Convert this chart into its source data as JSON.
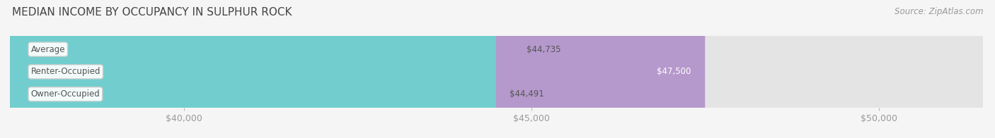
{
  "title": "MEDIAN INCOME BY OCCUPANCY IN SULPHUR ROCK",
  "source": "Source: ZipAtlas.com",
  "categories": [
    "Owner-Occupied",
    "Renter-Occupied",
    "Average"
  ],
  "values": [
    44491,
    47500,
    44735
  ],
  "bar_colors": [
    "#72cece",
    "#b599cc",
    "#f5c99a"
  ],
  "bar_bg_color": "#e4e4e4",
  "value_labels": [
    "$44,491",
    "$47,500",
    "$44,735"
  ],
  "value_label_colors": [
    "#555555",
    "#ffffff",
    "#555555"
  ],
  "xlim_min": 37500,
  "xlim_max": 51500,
  "x_ticks": [
    40000,
    45000,
    50000
  ],
  "x_tick_labels": [
    "$40,000",
    "$45,000",
    "$50,000"
  ],
  "bar_height": 0.58,
  "title_fontsize": 11,
  "label_fontsize": 8.5,
  "tick_fontsize": 9,
  "source_fontsize": 8.5,
  "title_color": "#444444",
  "label_color": "#555555",
  "tick_color": "#999999",
  "source_color": "#999999",
  "bg_color": "#f5f5f5",
  "grid_color": "#cccccc"
}
